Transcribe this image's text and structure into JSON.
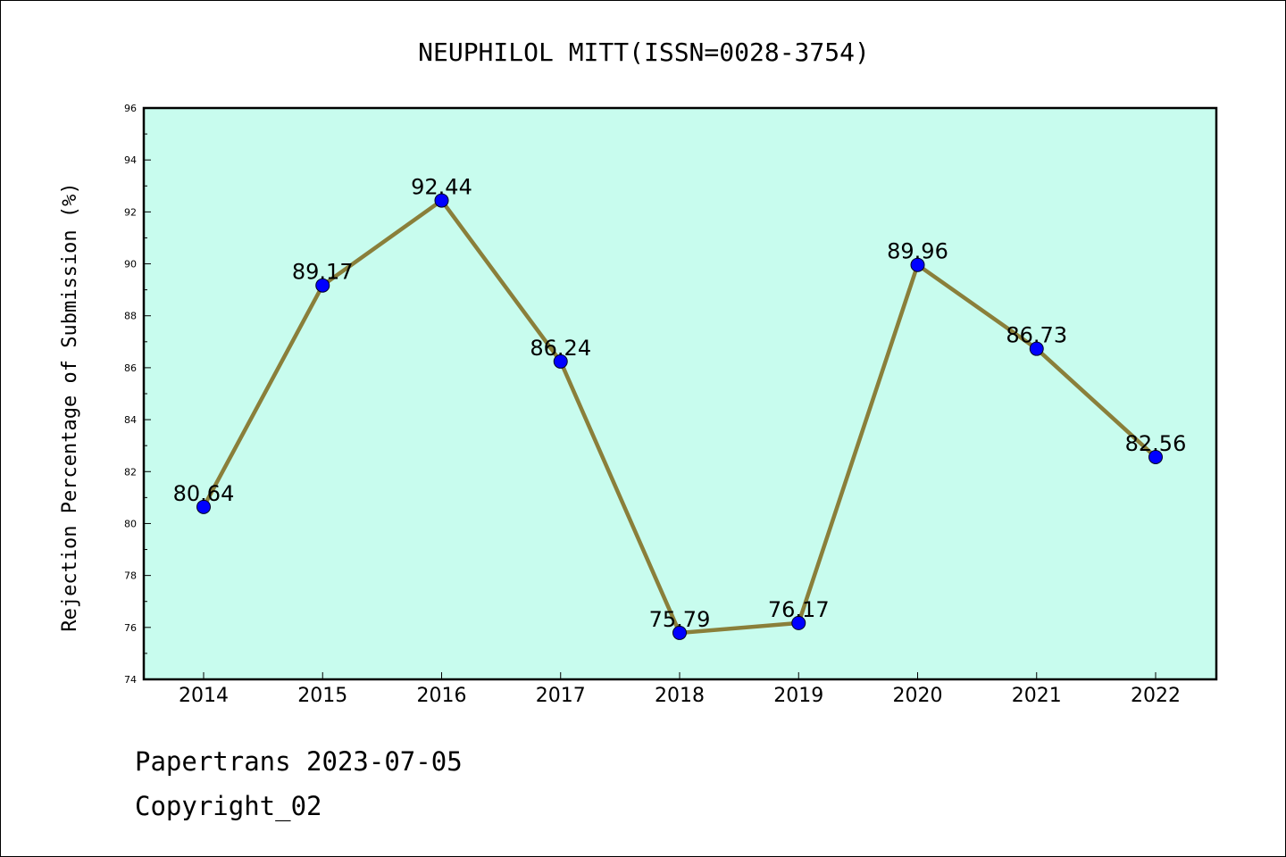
{
  "chart_data": {
    "type": "line",
    "title": "NEUPHILOL MITT(ISSN=0028-3754)",
    "ylabel": "Rejection Percentage of Submission (%)",
    "xlabel": "",
    "categories": [
      "2014",
      "2015",
      "2016",
      "2017",
      "2018",
      "2019",
      "2020",
      "2021",
      "2022"
    ],
    "series": [
      {
        "values": [
          80.64,
          89.17,
          92.44,
          86.24,
          75.79,
          76.17,
          89.96,
          86.73,
          82.56
        ],
        "labels": [
          "80.64",
          "89.17",
          "92.44",
          "86.24",
          "75.79",
          "76.17",
          "89.96",
          "86.73",
          "82.56"
        ]
      }
    ],
    "ylim": [
      74,
      96
    ],
    "yticks": [
      "74",
      "76",
      "78",
      "80",
      "82",
      "84",
      "86",
      "88",
      "90",
      "92",
      "94",
      "96"
    ],
    "grid": false,
    "colors": {
      "plot_background": "#c8fcee",
      "line": "#8a7f3a",
      "marker": "#0000ff"
    }
  },
  "footer": {
    "line1": "Papertrans 2023-07-05",
    "line2": "Copyright_02"
  }
}
